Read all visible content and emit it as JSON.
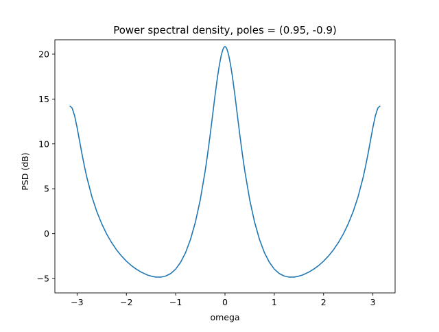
{
  "chart_data": {
    "type": "line",
    "title": "Power spectral density, poles = (0.95, -0.9)",
    "xlabel": "omega",
    "ylabel": "PSD (dB)",
    "xlim": [
      -3.45,
      3.45
    ],
    "ylim": [
      -6.6,
      21.6
    ],
    "xticks": [
      -3,
      -2,
      -1,
      0,
      1,
      2,
      3
    ],
    "xtick_labels": [
      "−3",
      "−2",
      "−1",
      "0",
      "1",
      "2",
      "3"
    ],
    "yticks": [
      -5,
      0,
      5,
      10,
      15,
      20
    ],
    "ytick_labels": [
      "−5",
      "0",
      "5",
      "10",
      "15",
      "20"
    ],
    "grid": false,
    "legend": "none",
    "series": [
      {
        "color": "#1f77b4",
        "x": [
          -3.1416,
          -3.1,
          -3.05,
          -3.0,
          -2.95,
          -2.9,
          -2.85,
          -2.8,
          -2.7,
          -2.6,
          -2.5,
          -2.4,
          -2.3,
          -2.2,
          -2.1,
          -2.0,
          -1.9,
          -1.8,
          -1.7,
          -1.6,
          -1.5708,
          -1.5,
          -1.4,
          -1.3,
          -1.2,
          -1.1,
          -1.0,
          -0.9,
          -0.8,
          -0.7,
          -0.6,
          -0.5,
          -0.4,
          -0.35,
          -0.3,
          -0.25,
          -0.2,
          -0.15,
          -0.12,
          -0.1,
          -0.08,
          -0.06,
          -0.04,
          -0.03,
          -0.02,
          -0.01,
          0.0,
          0.01,
          0.02,
          0.03,
          0.04,
          0.06,
          0.08,
          0.1,
          0.12,
          0.15,
          0.2,
          0.25,
          0.3,
          0.35,
          0.4,
          0.5,
          0.6,
          0.7,
          0.8,
          0.9,
          1.0,
          1.1,
          1.2,
          1.3,
          1.4,
          1.5,
          1.5708,
          1.6,
          1.7,
          1.8,
          1.9,
          2.0,
          2.1,
          2.2,
          2.3,
          2.4,
          2.5,
          2.6,
          2.7,
          2.8,
          2.85,
          2.9,
          2.95,
          3.0,
          3.05,
          3.1,
          3.1416
        ],
        "y": [
          14.2,
          14.0,
          13.15,
          11.85,
          10.36,
          8.87,
          7.49,
          6.24,
          4.13,
          2.47,
          1.1,
          -0.04,
          -0.99,
          -1.8,
          -2.48,
          -3.06,
          -3.55,
          -3.95,
          -4.28,
          -4.54,
          -4.61,
          -4.73,
          -4.84,
          -4.84,
          -4.72,
          -4.44,
          -3.95,
          -3.19,
          -2.12,
          -0.65,
          1.29,
          3.81,
          7.05,
          8.95,
          11.04,
          13.25,
          15.48,
          17.52,
          18.58,
          19.19,
          19.75,
          20.2,
          20.54,
          20.67,
          20.76,
          20.82,
          20.83,
          20.82,
          20.76,
          20.67,
          20.54,
          20.2,
          19.75,
          19.19,
          18.58,
          17.52,
          15.48,
          13.25,
          11.04,
          8.95,
          7.05,
          3.81,
          1.29,
          -0.65,
          -2.12,
          -3.19,
          -3.95,
          -4.44,
          -4.72,
          -4.84,
          -4.84,
          -4.73,
          -4.61,
          -4.54,
          -4.28,
          -3.95,
          -3.55,
          -3.06,
          -2.48,
          -1.8,
          -0.99,
          -0.04,
          1.1,
          2.47,
          4.13,
          6.24,
          7.49,
          8.87,
          10.36,
          11.85,
          13.15,
          14.0,
          14.2
        ]
      }
    ]
  }
}
